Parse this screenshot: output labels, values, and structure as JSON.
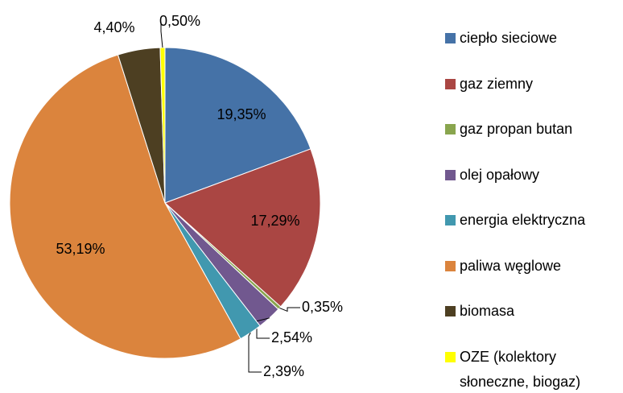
{
  "chart_data": {
    "type": "pie",
    "categories": [
      "ciepło sieciowe",
      "gaz ziemny",
      "gaz propan butan",
      "olej opałowy",
      "energia elektryczna",
      "paliwa węglowe",
      "biomasa",
      "OZE (kolektory słoneczne, biogaz)"
    ],
    "values": [
      19.35,
      17.29,
      0.35,
      2.54,
      2.39,
      53.19,
      4.4,
      0.5
    ],
    "value_labels": [
      "19,35%",
      "17,29%",
      "0,35%",
      "2,54%",
      "2,39%",
      "53,19%",
      "4,40%",
      "0,50%"
    ],
    "colors": [
      "#4572a7",
      "#aa4643",
      "#89a54e",
      "#71588f",
      "#4198af",
      "#db843d",
      "#4d3f22",
      "#ffff00"
    ],
    "legend": "right"
  }
}
